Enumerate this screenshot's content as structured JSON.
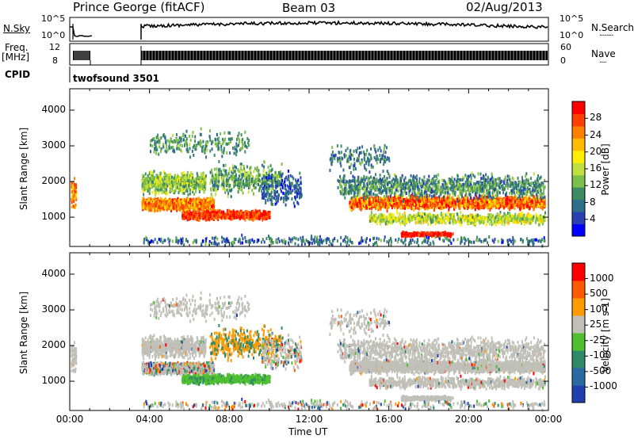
{
  "header": {
    "radar": "Prince George (fitACF)",
    "beam": "Beam 03",
    "date": "02/Aug/2013"
  },
  "noise_panel": {
    "left_label": "N.Sky",
    "left_ticks": [
      "10^5",
      "10^0"
    ],
    "right_ticks": [
      "10^5",
      "10^0"
    ],
    "right_label": "N.Search",
    "right_label_suffix": "........"
  },
  "freq_panel": {
    "left_label_line1": "Freq.",
    "left_label_line2": "[MHz]",
    "left_ticks": [
      "12",
      "8"
    ],
    "right_ticks": [
      "60",
      "0"
    ],
    "right_label": "Nave",
    "right_label_suffix": "...."
  },
  "cpid_panel": {
    "label": "CPID",
    "value": "twofsound 3501"
  },
  "chart_data": [
    {
      "type": "heatmap",
      "name": "power",
      "ylabel": "Slant Range [km]",
      "xlabel": "",
      "xlim": [
        "00:00",
        "24:00"
      ],
      "ylim": [
        180,
        4600
      ],
      "yticks": [
        "1000",
        "2000",
        "3000",
        "4000"
      ],
      "colorbar": {
        "label": "Power [dB]",
        "ticks": [
          "28",
          "24",
          "20",
          "16",
          "12",
          "8",
          "4"
        ],
        "range": [
          0,
          30
        ],
        "colors": [
          "#0000ff",
          "#2a3fb0",
          "#2f6e8a",
          "#3e8a62",
          "#7cbf4a",
          "#c0e040",
          "#ffee00",
          "#ffbb00",
          "#ff8000",
          "#ff4000",
          "#ff0000"
        ]
      }
    },
    {
      "type": "heatmap",
      "name": "velocity",
      "ylabel": "Slant Range [km]",
      "xlabel": "Time UT",
      "xlim": [
        "00:00",
        "24:00"
      ],
      "ylim": [
        180,
        4600
      ],
      "yticks": [
        "1000",
        "2000",
        "3000",
        "4000"
      ],
      "xticks": [
        "00:00",
        "04:00",
        "08:00",
        "12:00",
        "16:00",
        "20:00",
        "00:00"
      ],
      "colorbar": {
        "label": "Velocity [m s-1]",
        "ticks": [
          "1000",
          "500",
          "100",
          "25",
          "-25",
          "-100",
          "-500",
          "-1000"
        ],
        "colors": [
          "#2040b0",
          "#2a6aa0",
          "#2f8a6a",
          "#50c030",
          "#c0c0b8",
          "#ff9a00",
          "#ff5a00",
          "#ff0000"
        ]
      }
    }
  ],
  "colors": {
    "frame": "#000000",
    "ground_scatter": "#c0c0b8"
  }
}
